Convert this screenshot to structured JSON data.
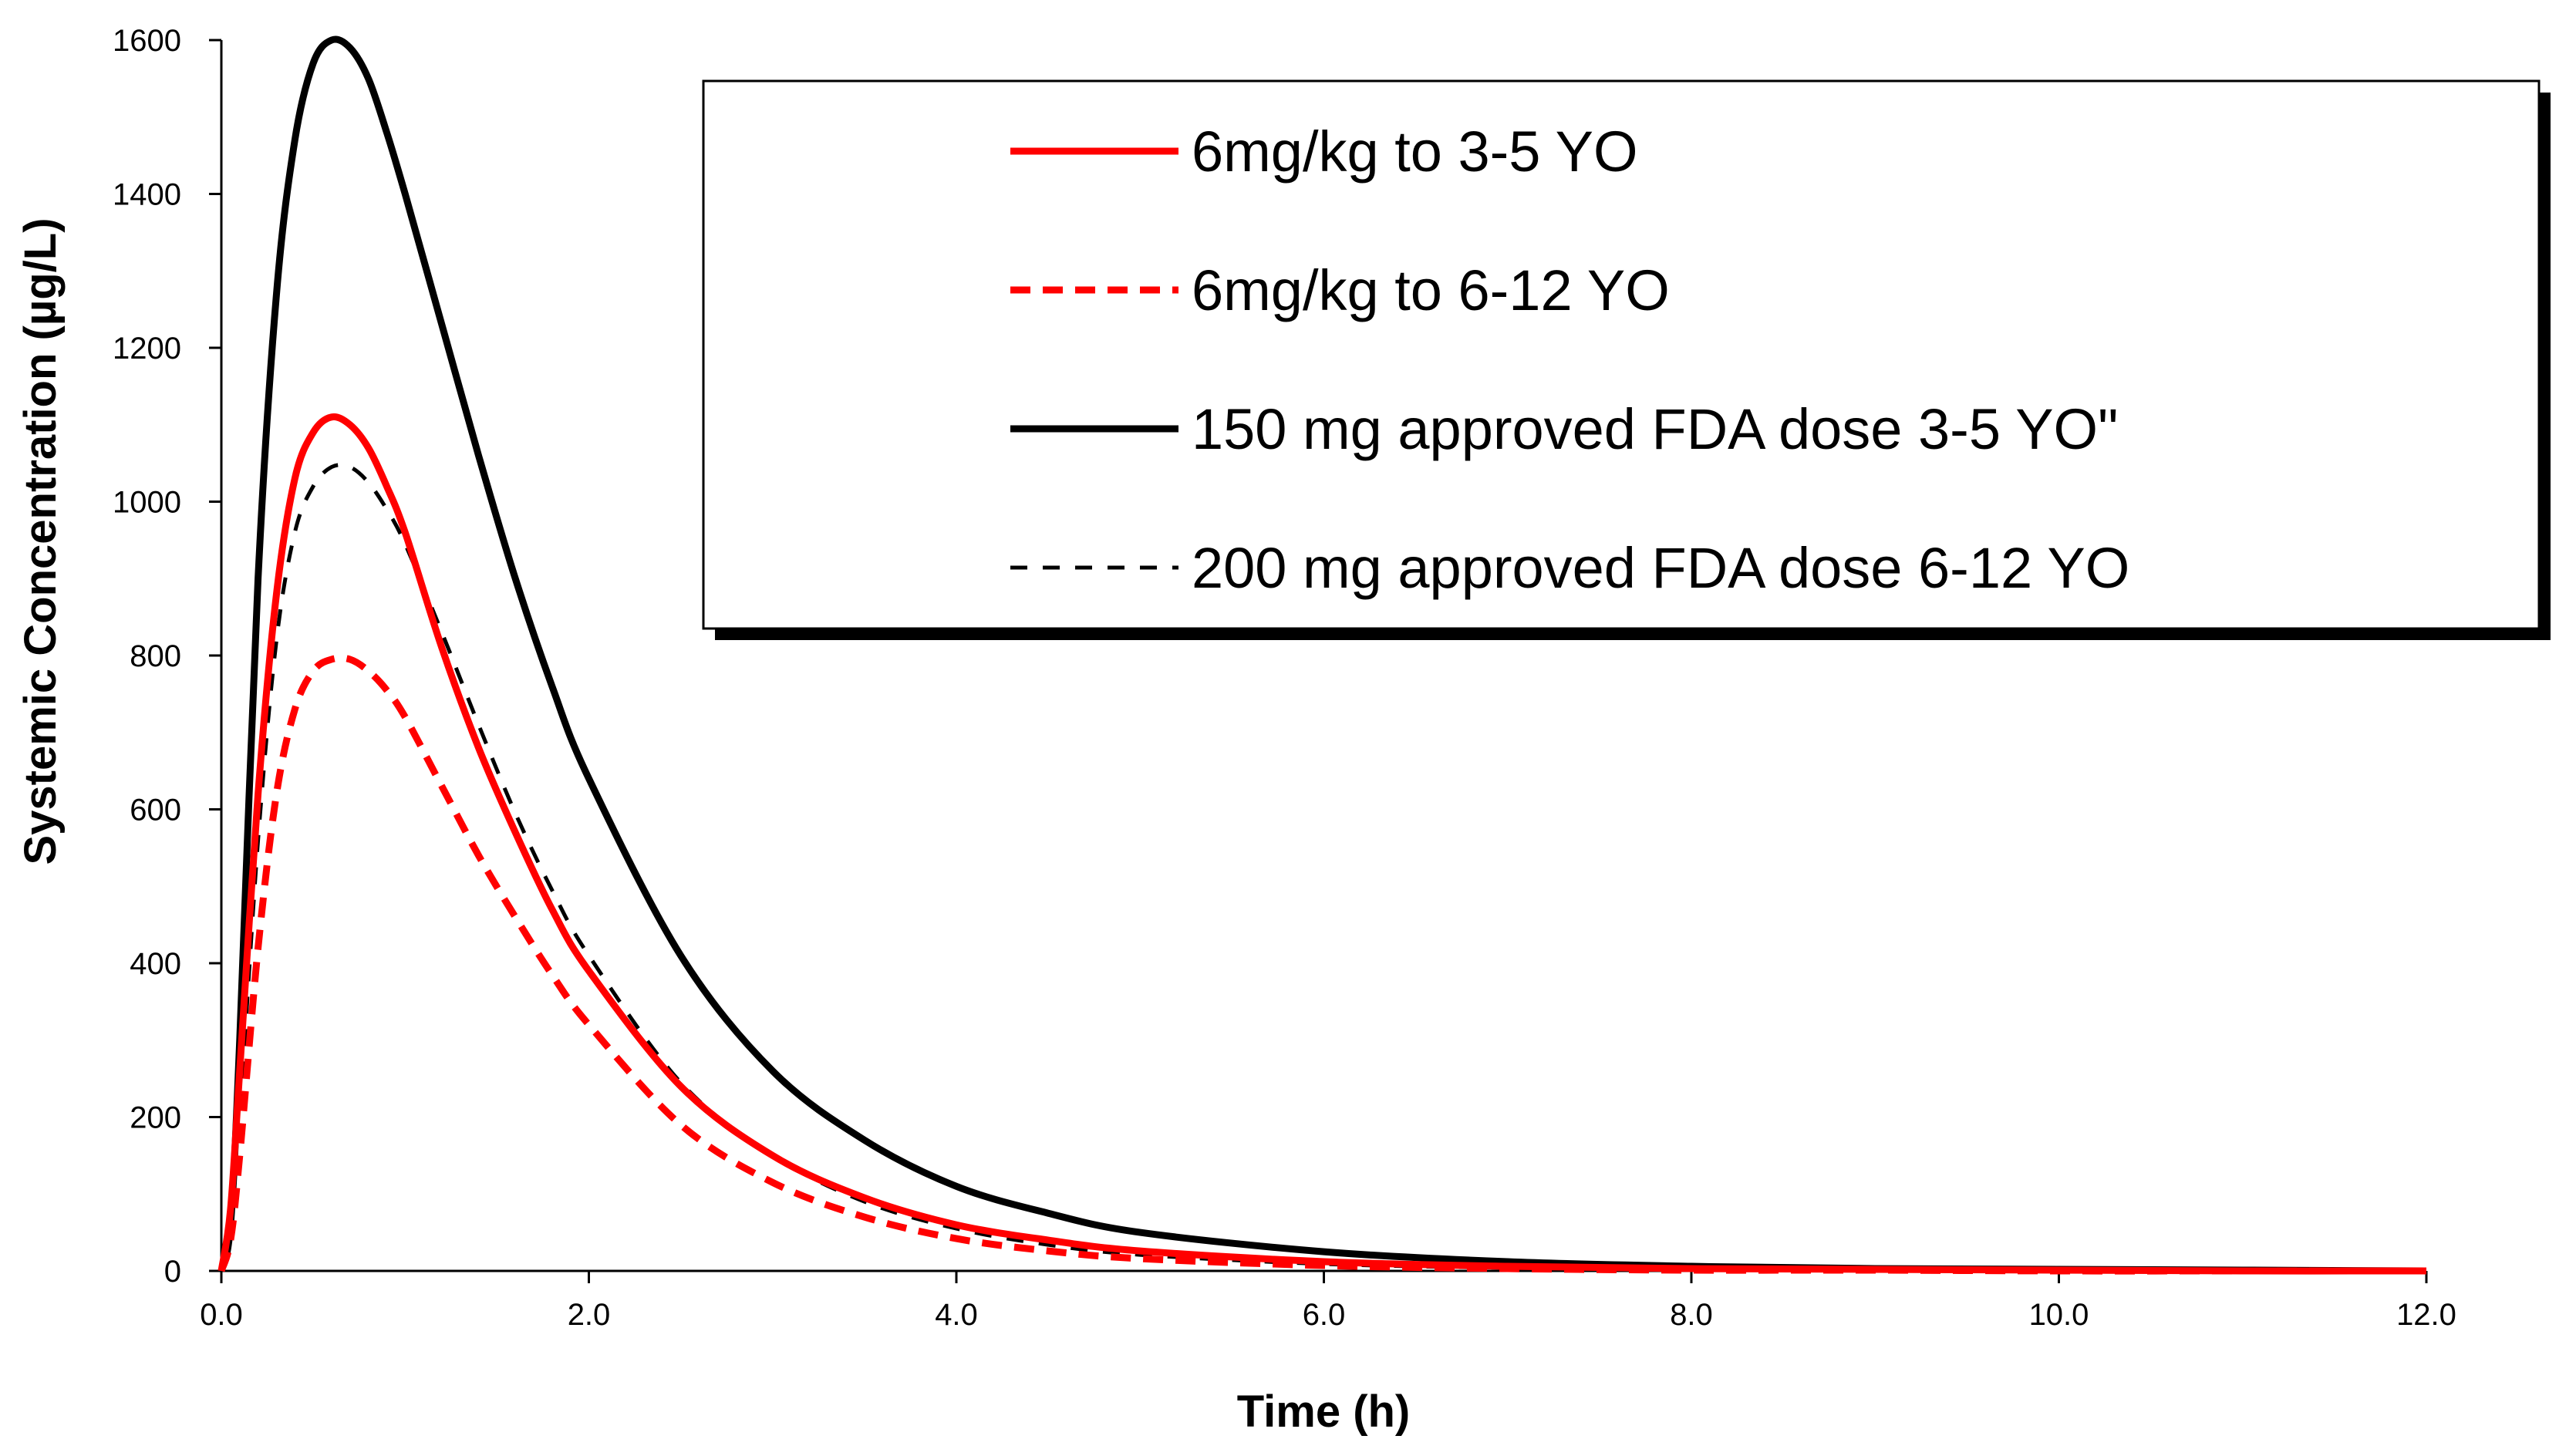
{
  "chart_data": {
    "type": "line",
    "title": "",
    "xlabel": "Time (h)",
    "ylabel": "Systemic Concentration (µg/L)",
    "xlim": [
      0,
      12
    ],
    "ylim": [
      0,
      1600
    ],
    "x_ticks": [
      0,
      2,
      4,
      6,
      8,
      10,
      12
    ],
    "x_tick_labels": [
      "0.0",
      "2.0",
      "4.0",
      "6.0",
      "8.0",
      "10.0",
      "12.0"
    ],
    "y_ticks": [
      0,
      200,
      400,
      600,
      800,
      1000,
      1200,
      1400,
      1600
    ],
    "y_tick_labels": [
      "0",
      "200",
      "400",
      "600",
      "800",
      "1000",
      "1200",
      "1400",
      "1600"
    ],
    "grid": false,
    "legend_position": "top-right",
    "series": [
      {
        "name": "6mg/kg to 3-5 YO",
        "color": "#ff0000",
        "style": "solid",
        "x": [
          0,
          0.05,
          0.1,
          0.2,
          0.3,
          0.4,
          0.5,
          0.6,
          0.7,
          0.8,
          0.9,
          1.0,
          1.2,
          1.4,
          1.6,
          1.8,
          2.0,
          2.5,
          3.0,
          3.5,
          4.0,
          4.5,
          5.0,
          6.0,
          7.0,
          8.0,
          9.0,
          10.0,
          11.0,
          12.0
        ],
        "values": [
          0,
          80,
          260,
          620,
          880,
          1030,
          1090,
          1110,
          1100,
          1070,
          1020,
          960,
          810,
          680,
          570,
          470,
          390,
          240,
          150,
          95,
          60,
          40,
          26,
          12,
          6,
          3,
          2,
          1,
          0,
          0
        ]
      },
      {
        "name": "6mg/kg to 6-12 YO",
        "color": "#ff0000",
        "style": "dashed",
        "x": [
          0,
          0.05,
          0.1,
          0.2,
          0.3,
          0.4,
          0.5,
          0.6,
          0.7,
          0.8,
          0.9,
          1.0,
          1.2,
          1.4,
          1.6,
          1.8,
          2.0,
          2.5,
          3.0,
          3.5,
          4.0,
          4.5,
          5.0,
          6.0,
          7.0,
          8.0,
          9.0,
          10.0,
          11.0,
          12.0
        ],
        "values": [
          0,
          40,
          150,
          420,
          620,
          730,
          780,
          795,
          795,
          780,
          755,
          720,
          630,
          540,
          460,
          385,
          320,
          190,
          115,
          70,
          42,
          26,
          16,
          7,
          3,
          1,
          1,
          0,
          0,
          0
        ]
      },
      {
        "name": "150 mg approved FDA dose 3-5 YO\"",
        "color": "#000000",
        "style": "solid",
        "x": [
          0,
          0.05,
          0.1,
          0.2,
          0.3,
          0.4,
          0.5,
          0.6,
          0.7,
          0.8,
          0.9,
          1.0,
          1.2,
          1.4,
          1.6,
          1.8,
          2.0,
          2.5,
          3.0,
          3.5,
          4.0,
          4.5,
          5.0,
          6.0,
          7.0,
          8.0,
          9.0,
          10.0,
          11.0,
          12.0
        ],
        "values": [
          0,
          60,
          300,
          900,
          1270,
          1470,
          1570,
          1600,
          1590,
          1550,
          1480,
          1400,
          1230,
          1060,
          900,
          760,
          640,
          410,
          260,
          170,
          110,
          75,
          50,
          25,
          12,
          6,
          3,
          2,
          1,
          0
        ]
      },
      {
        "name": "200 mg approved FDA dose 6-12 YO",
        "color": "#000000",
        "style": "dashed",
        "x": [
          0,
          0.05,
          0.1,
          0.2,
          0.3,
          0.4,
          0.5,
          0.6,
          0.7,
          0.8,
          0.9,
          1.0,
          1.2,
          1.4,
          1.6,
          1.8,
          2.0,
          2.5,
          3.0,
          3.5,
          4.0,
          4.5,
          5.0,
          6.0,
          7.0,
          8.0,
          9.0,
          10.0,
          11.0,
          12.0
        ],
        "values": [
          0,
          50,
          200,
          560,
          820,
          960,
          1020,
          1045,
          1045,
          1025,
          990,
          945,
          830,
          710,
          595,
          495,
          410,
          245,
          150,
          90,
          55,
          34,
          21,
          9,
          4,
          2,
          1,
          0,
          0,
          0
        ]
      }
    ]
  }
}
